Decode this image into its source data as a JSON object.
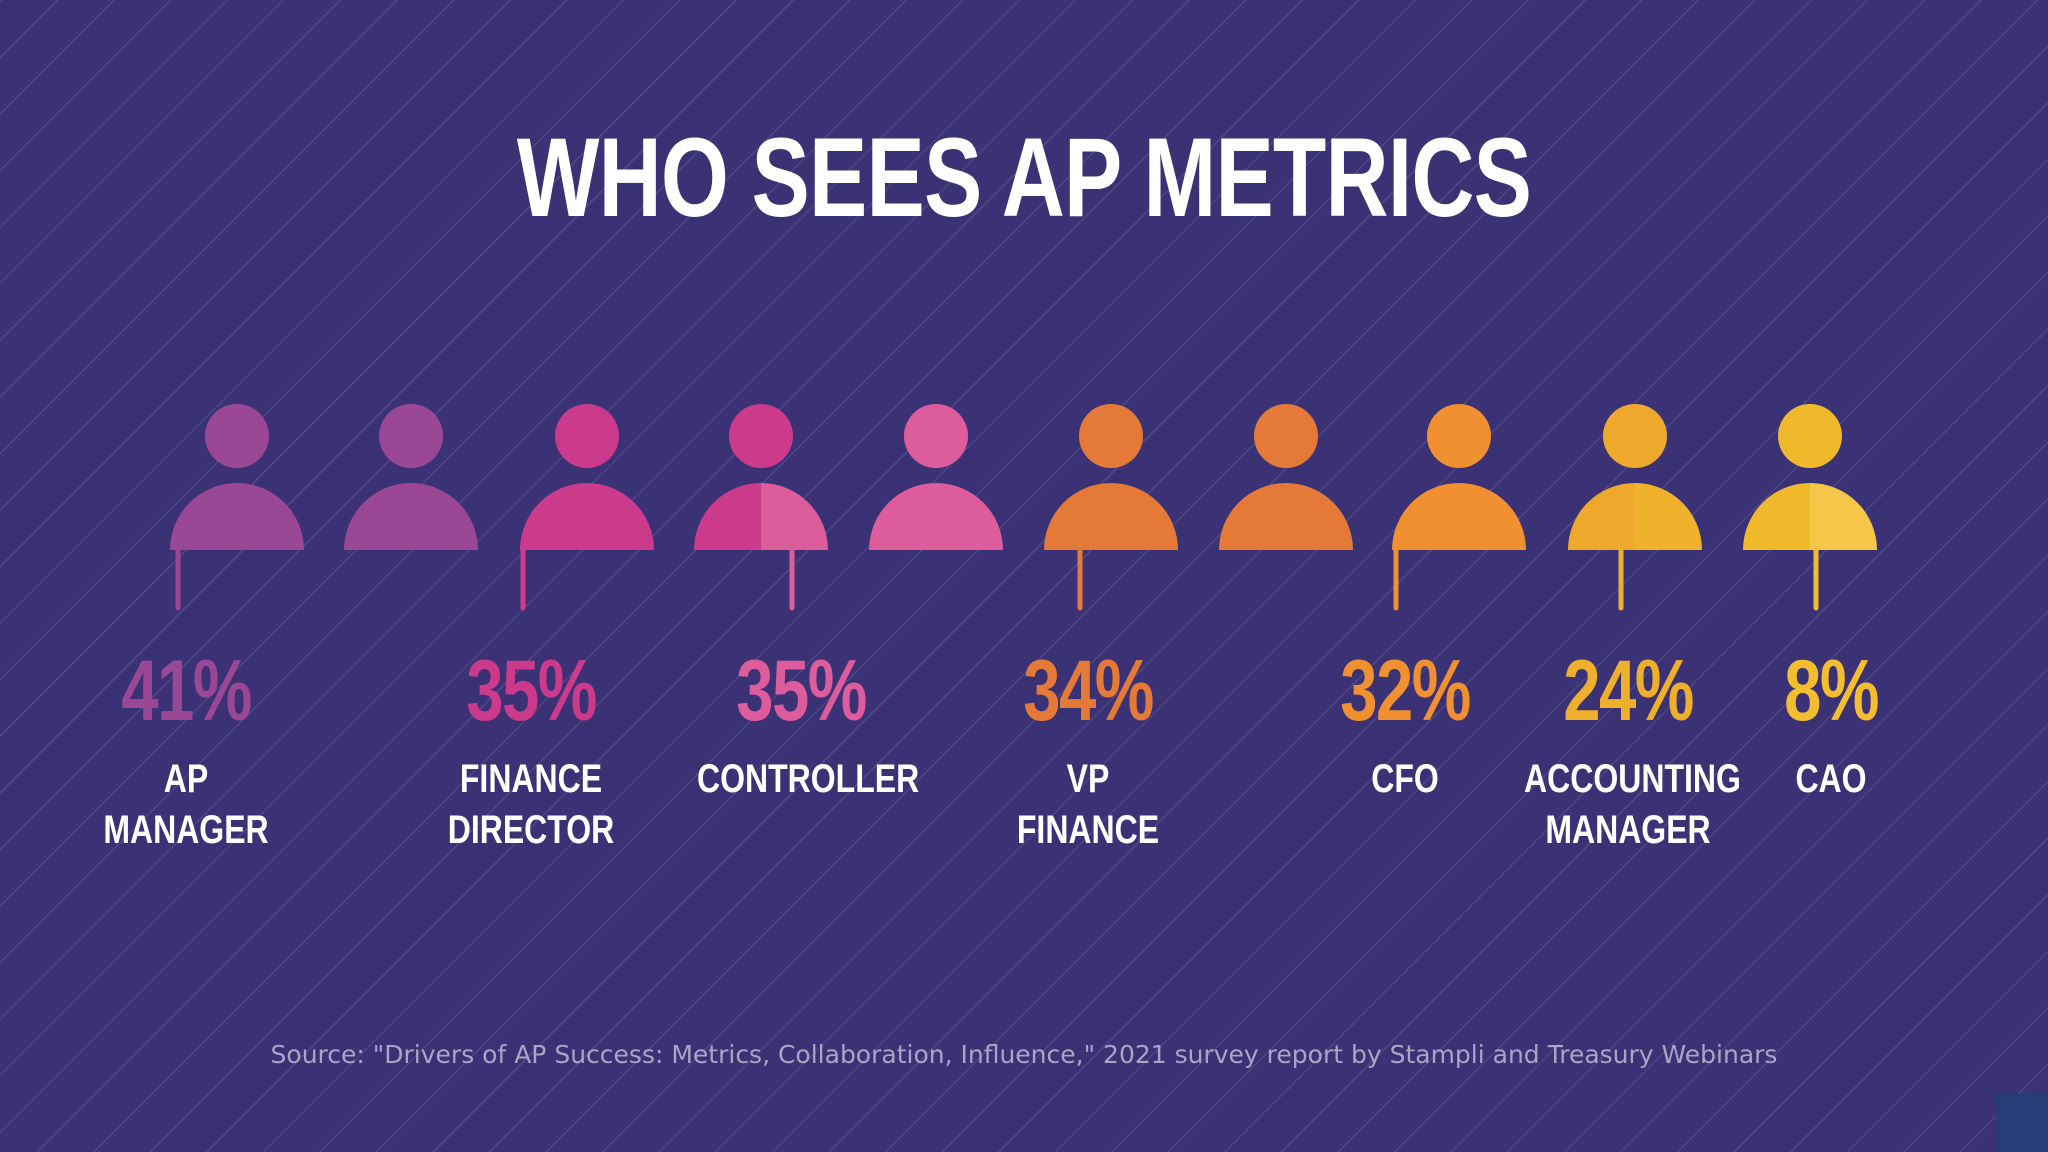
{
  "title": "WHO SEES AP METRICS",
  "source": "Source: \"Drivers of AP Success: Metrics, Collaboration, Influence,\" 2021 survey report by Stampli and Treasury Webinars",
  "colors": {
    "background": "#3a3275",
    "person": [
      "#9a4896",
      "#9a4896",
      "#cc3a8c",
      "#cc3a8c",
      "#dc5c9c",
      "#e57a38",
      "#e57a38",
      "#f09030",
      "#eea92c",
      "#f0b92c"
    ],
    "person_right_half": [
      "#9a4896",
      "#9a4896",
      "#cc3a8c",
      "#dc5c9c",
      "#dc5c9c",
      "#e57a38",
      "#e57a38",
      "#f09030",
      "#f0b22c",
      "#f6c648"
    ]
  },
  "chart_data": {
    "type": "pictogram",
    "title": "WHO SEES AP METRICS",
    "unit": "%",
    "categories": [
      "AP MANAGER",
      "FINANCE DIRECTOR",
      "CONTROLLER",
      "VP FINANCE",
      "CFO",
      "ACCOUNTING MANAGER",
      "CAO"
    ],
    "values": [
      41,
      35,
      35,
      34,
      32,
      24,
      8
    ],
    "value_labels": [
      "41%",
      "35%",
      "35%",
      "34%",
      "32%",
      "24%",
      "8%"
    ],
    "label_lines": [
      [
        "AP",
        "MANAGER"
      ],
      [
        "FINANCE",
        "DIRECTOR"
      ],
      [
        "CONTROLLER"
      ],
      [
        "VP",
        "FINANCE"
      ],
      [
        "CFO"
      ],
      [
        "ACCOUNTING",
        "MANAGER"
      ],
      [
        "CAO"
      ]
    ],
    "label_colors": [
      "#9a4896",
      "#cc3a8c",
      "#dc5c9c",
      "#e57a38",
      "#f09030",
      "#eeb02c",
      "#f3bd30"
    ],
    "person_icon_count": 10
  }
}
